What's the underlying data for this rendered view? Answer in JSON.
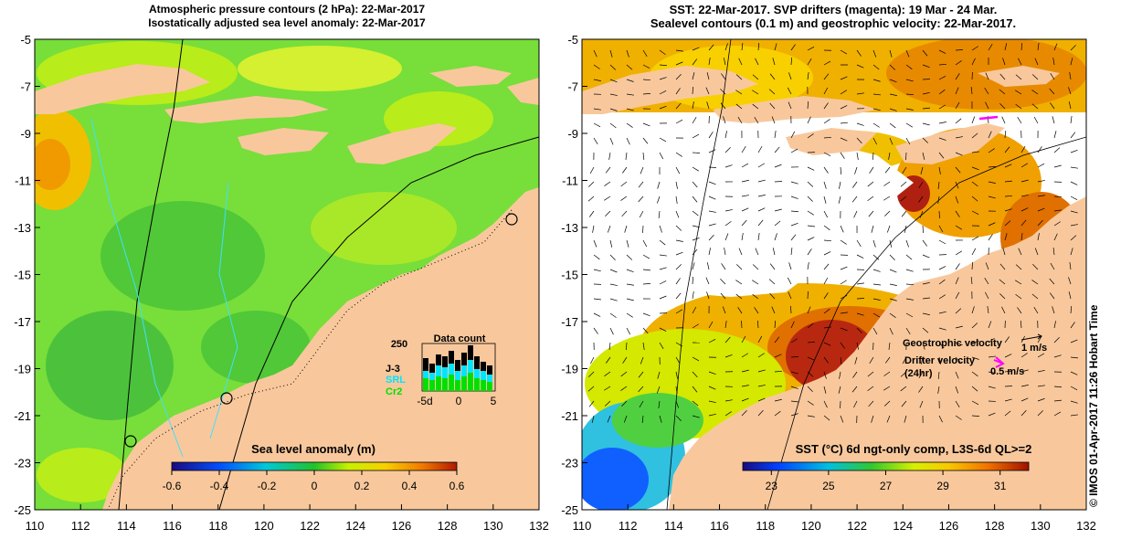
{
  "left_panel": {
    "title_line1": "Atmospheric pressure contours (2 hPa): 22-Mar-2017",
    "title_line2": "Isostatically adjusted sea level anomaly: 22-Mar-2017",
    "colorbar": {
      "label": "Sea level anomaly (m)",
      "ticks": [
        "-0.6",
        "-0.4",
        "-0.2",
        "0",
        "0.2",
        "0.4",
        "0.6"
      ],
      "range": [
        -0.6,
        0.6
      ]
    },
    "inset": {
      "title": "Data count",
      "ymax_label": "250",
      "legend": [
        {
          "name": "J-3",
          "color": "#000000"
        },
        {
          "name": "SRL",
          "color": "#00e5ff"
        },
        {
          "name": "Cr2",
          "color": "#00e000"
        }
      ],
      "x_ticks": [
        "-5d",
        "0",
        "5"
      ]
    }
  },
  "right_panel": {
    "title_line1": "SST: 22-Mar-2017. SVP drifters (magenta): 19 Mar - 24 Mar.",
    "title_line2": "Sealevel contours (0.1 m) and geostrophic velocity: 22-Mar-2017.",
    "colorbar": {
      "label": "SST (°C) 6d ngt-only comp, L3S-6d QL>=2",
      "ticks": [
        "23",
        "25",
        "27",
        "29",
        "31"
      ],
      "range": [
        22,
        32
      ]
    },
    "legend": {
      "geostrophic_label": "Geostrophic velocity",
      "geostrophic_value": "1 m/s",
      "drifter_label_line1": "Drifter velocity",
      "drifter_label_line2": "(24hr)",
      "drifter_value": "0.5 m/s"
    }
  },
  "map_axes": {
    "lon_ticks": [
      "110",
      "112",
      "114",
      "116",
      "118",
      "120",
      "122",
      "124",
      "126",
      "128",
      "130",
      "132"
    ],
    "lat_ticks": [
      "-5",
      "-7",
      "-9",
      "-11",
      "-13",
      "-15",
      "-17",
      "-19",
      "-21",
      "-23",
      "-25"
    ],
    "lon_range": [
      110,
      132
    ],
    "lat_range": [
      -25,
      -5
    ]
  },
  "credit": "© IMOS 01-Apr-2017 11:26 Hobart Time",
  "colors": {
    "land": "#f8c89c",
    "ocean_green": "#7fe03a",
    "yellow_green": "#b8ec1a",
    "sst_orange": "#f0a000",
    "sst_red": "#c04010"
  }
}
